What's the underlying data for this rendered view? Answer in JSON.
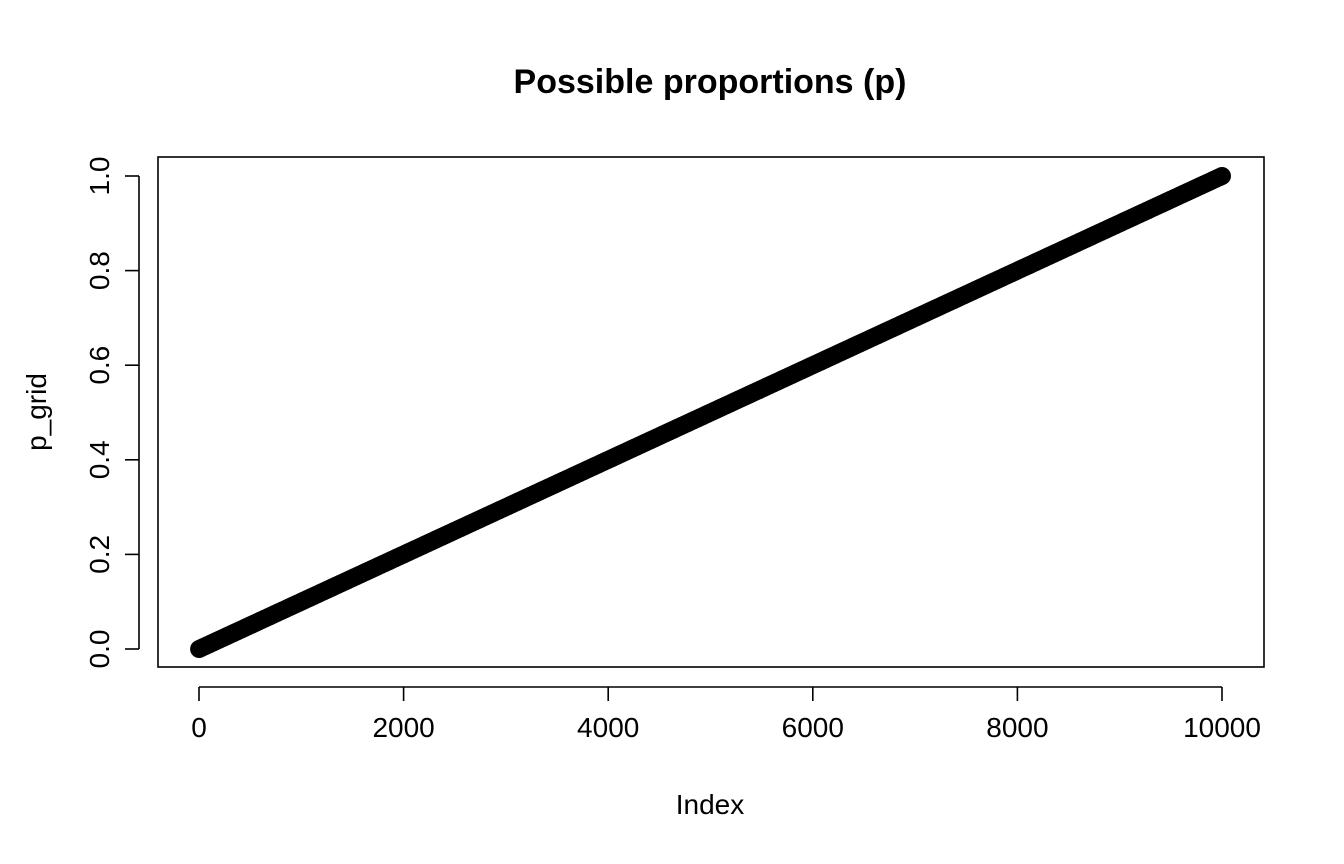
{
  "chart_data": {
    "type": "scatter",
    "title": "Possible proportions (p)",
    "xlabel": "Index",
    "ylabel": "p_grid",
    "xlim": [
      0,
      10000
    ],
    "ylim": [
      0.0,
      1.0
    ],
    "n_points": 10000,
    "x_start": 1,
    "x_end": 10000,
    "y_start": 0.0,
    "y_end": 1.0,
    "x_ticks": [
      "0",
      "2000",
      "4000",
      "6000",
      "8000",
      "10000"
    ],
    "y_ticks": [
      "0.0",
      "0.2",
      "0.4",
      "0.6",
      "0.8",
      "1.0"
    ],
    "point_color": "#000000",
    "grid": false,
    "legend": "none"
  }
}
